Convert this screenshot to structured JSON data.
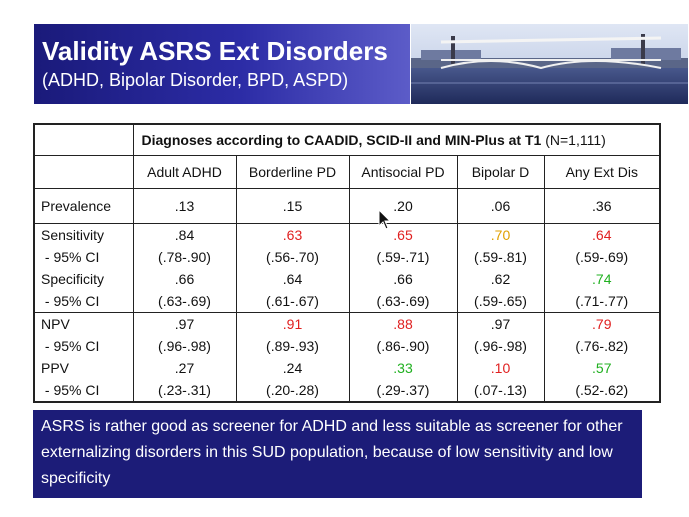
{
  "header": {
    "title": "Validity ASRS Ext Disorders",
    "subtitle": "(ADHD, Bipolar Disorder, BPD, ASPD)"
  },
  "table": {
    "caption_bold": "Diagnoses according to CAADID, SCID-II and MIN-Plus at T1",
    "caption_n": "(N=1,111)",
    "columns": [
      "Adult ADHD",
      "Borderline PD",
      "Antisocial PD",
      "Bipolar D",
      "Any Ext Dis"
    ],
    "prevalence": {
      "label": "Prevalence",
      "values": [
        ".13",
        ".15",
        ".20",
        ".06",
        ".36"
      ]
    },
    "sens_spec": {
      "labels": [
        "Sensitivity",
        " - 95% CI",
        "Specificity",
        " - 95% CI"
      ],
      "cols": [
        [
          ".84",
          "(.78-.90)",
          ".66",
          "(.63-.69)"
        ],
        [
          ".63",
          "(.56-.70)",
          ".64",
          "(.61-.67)"
        ],
        [
          ".65",
          "(.59-.71)",
          ".66",
          "(.63-.69)"
        ],
        [
          ".70",
          "(.59-.81)",
          ".62",
          "(.59-.65)"
        ],
        [
          ".64",
          "(.59-.69)",
          ".74",
          "(.71-.77)"
        ]
      ]
    },
    "npv_ppv": {
      "labels": [
        "NPV",
        " - 95% CI",
        "PPV",
        " - 95% CI"
      ],
      "cols": [
        [
          ".97",
          "(.96-.98)",
          ".27",
          "(.23-.31)"
        ],
        [
          ".91",
          "(.89-.93)",
          ".24",
          "(.20-.28)"
        ],
        [
          ".88",
          "(.86-.90)",
          ".33",
          "(.29-.37)"
        ],
        [
          ".97",
          "(.96-.98)",
          ".10",
          "(.07-.13)"
        ],
        [
          ".79",
          "(.76-.82)",
          ".57",
          "(.52-.62)"
        ]
      ]
    }
  },
  "conclusion": "ASRS is  rather good as screener for ADHD and less suitable as screener for other externalizing disorders in this SUD population, because of low sensitivity and low specificity",
  "colors": {
    "header_bg": "#2c2ca6",
    "red": "#e02020",
    "orange": "#e0a000",
    "green": "#20b020",
    "conclusion_bg": "#1c1c78"
  }
}
